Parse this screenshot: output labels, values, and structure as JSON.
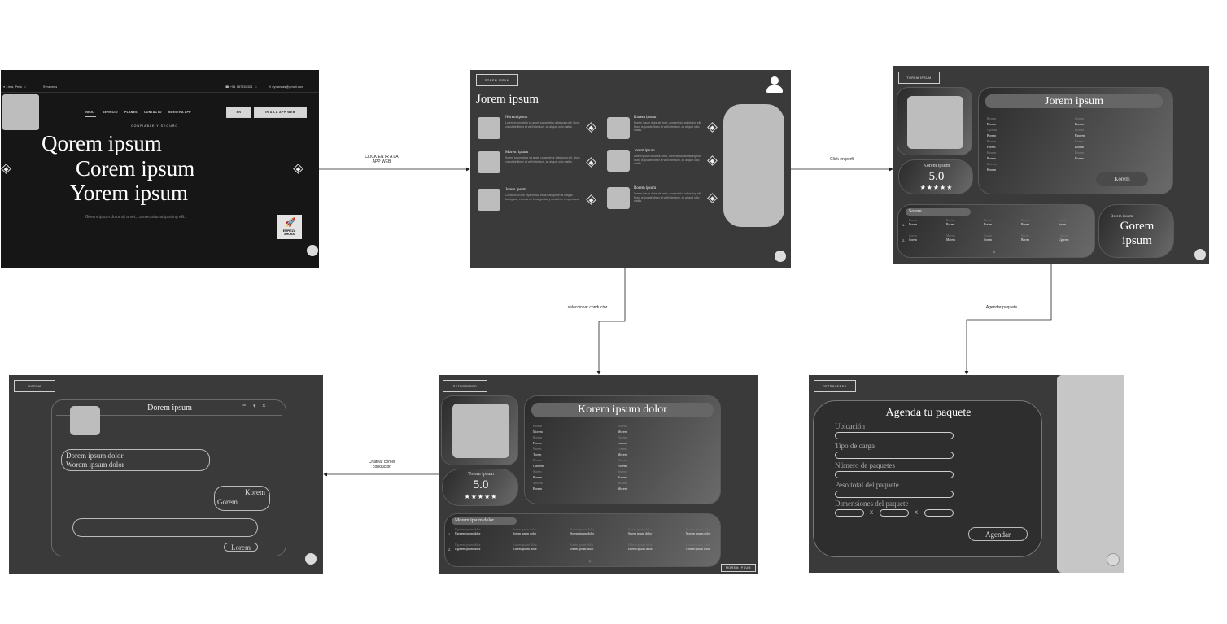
{
  "connectors": {
    "c1": "CLICK EN IR A LA\nAPP WEB",
    "c2": "Click en perfil",
    "c3": "seleccionar conductor",
    "c4": "Agendar paquete",
    "c5": "Chatear con el\nconductor"
  },
  "screen1": {
    "location": "Lima, Perú",
    "language": "Synaveas",
    "phone": "+51 987654321",
    "email": "dynaveas@gmail.com",
    "nav": [
      "INICIO",
      "SERVICIO",
      "PLANES",
      "CONTACTO",
      "NUESTRA APP"
    ],
    "btn_en": "EN",
    "btn_app": "IR A LA APP WEB",
    "tagline": "CONFIABLE Y SEGURO",
    "hero1": "Qorem ipsum",
    "hero2": "Corem ipsum",
    "hero3": "Yorem ipsum",
    "sub": "Gorem ipsum dolor sit amet, consectetur adipiscing elit.",
    "cta": "EMPIEZA\nAHORA"
  },
  "screen2": {
    "top_btn": "SOREM IPSUM",
    "title": "Jorem ipsum",
    "items": [
      {
        "name": "Norem ipsum",
        "desc": "Lorem ipsum dolor sit amet, consectetur adipiscing elit. Nunc vulputate libero et velit interdum, ac aliquet odio mattis."
      },
      {
        "name": "Korem ipsum",
        "desc": "Norem ipsum dolor sit amet, consectetur adipiscing elit. Nunc vulputate libero et velit interdum, ac aliquet odio mattis."
      },
      {
        "name": "Morem ipsum",
        "desc": "Sorem ipsum dolor sit amet, consectetur adipiscing elit. Nunc vulputate libero et velit interdum, ac aliquet odio mattis."
      },
      {
        "name": "Jorem ipsum",
        "desc": "Lorem ipsum dolor sit amet, consectetur adipiscing elit. Nunc vulputate libero et velit interdum, ac aliquet odio mattis."
      },
      {
        "name": "Jorem ipsum",
        "desc": "Conductora con experiencia en la transporte de cargas biológicas, experta en biosegurdad y control de temperatura."
      },
      {
        "name": "Rorem ipsum",
        "desc": "Dorem ipsum dolor sit amet, consectetur adipiscing elit. Nunc vulputate libero et velit interdum, ac aliquet odio mattis."
      }
    ]
  },
  "screen3": {
    "top_btn": "TOREM IPSUM",
    "title": "Jorem ipsum",
    "rating_label": "Korem ipsum",
    "rating": "5.0",
    "stars": "★★★★★",
    "col1": [
      "Rorem",
      "Borem",
      "Ujorem",
      "Borem",
      "Rorem",
      "Forem",
      "Korem",
      "Borem",
      "Morem",
      "Korem"
    ],
    "col2": [
      "Gorem",
      "Borem",
      "Horem",
      "Ugorem",
      "Rorem",
      "Borem",
      "Dorem",
      "Borem"
    ],
    "button": "Korem",
    "table_title": "Sorem",
    "table_rows": [
      [
        "Borem",
        "Rorem",
        "Borem",
        "Borem",
        "Jorem"
      ],
      [
        "Sorem",
        "Morem",
        "Sorem",
        "Borem",
        "Ugorem"
      ]
    ],
    "side_small": "Borem ipsum",
    "side_big": "Gorem\nipsum"
  },
  "screen4": {
    "top_btn": "MOREM",
    "chat_title": "Dorem ipsum",
    "msg1": "Dorem ipsum dolor\nWorem ipsum dolor",
    "msg2a": "Korem",
    "msg2b": "Gorem",
    "send": "Lorem"
  },
  "screen5": {
    "top_btn": "RETROCEDER",
    "title": "Korem ipsum dolor",
    "rating_label": "Torem ipsum",
    "rating": "5.0",
    "stars": "★★★★★",
    "col1": [
      "Korem",
      "Morem",
      "Rorem",
      "Forem",
      "Sorem",
      "Torem",
      "Dorem",
      "Cuorem",
      "Sorem",
      "Borem",
      "Morem",
      "Borem"
    ],
    "col2": [
      "Borem",
      "Morem",
      "Norem",
      "Lorem",
      "Lorem",
      "Morem",
      "Borem",
      "Norem",
      "Sorem",
      "Borem",
      "Morem",
      "Morem"
    ],
    "table_title": "Morem ipsum dolor",
    "table_rows": [
      [
        "Ugorem ipsum dolor",
        "Sorem ipsum dolor",
        "Sorem ipsum dolor",
        "Sorem ipsum dolor",
        "Morem ipsum dolor"
      ],
      [
        "Ugorem ipsum dolor",
        "Korem ipsum dolor",
        "Jorem ipsum dolor",
        "Horem ipsum dolor",
        "Gorem ipsum dolor"
      ]
    ],
    "bottom_btn": "MOREM IPSUM"
  },
  "screen6": {
    "top_btn": "RETROCEDER",
    "title": "Agenda tu paquete",
    "f1": "Ubicación",
    "f2": "Tipo de carga",
    "f3": "Número de paquetes",
    "f4": "Peso total del paquete",
    "f5": "Dimensiones del paquete",
    "x": "X",
    "button": "Agendar"
  }
}
